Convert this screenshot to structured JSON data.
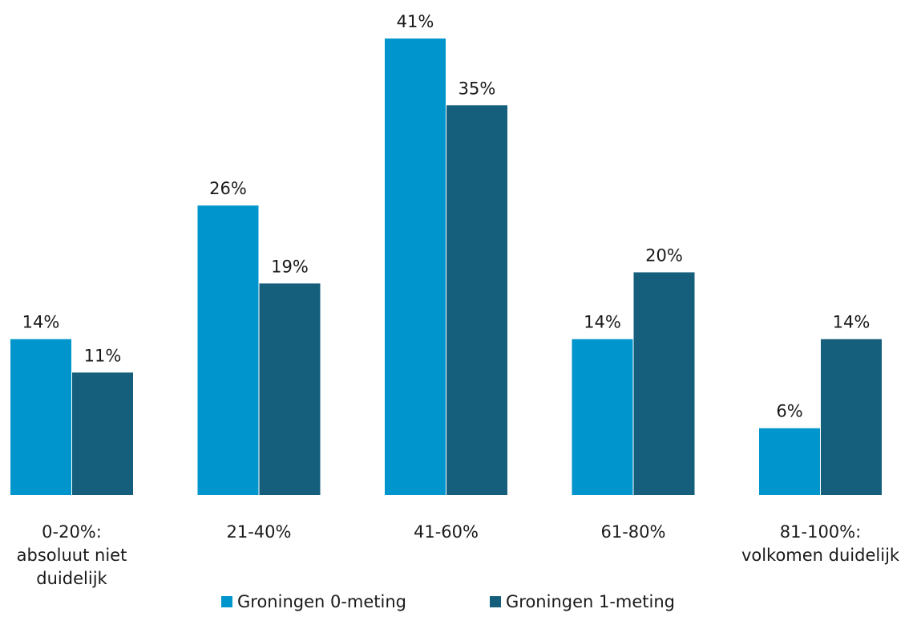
{
  "chart_data": {
    "type": "bar",
    "categories": [
      [
        "0-20%:",
        "absoluut niet",
        "duidelijk"
      ],
      [
        "21-40%"
      ],
      [
        "41-60%"
      ],
      [
        "61-80%"
      ],
      [
        "81-100%:",
        "volkomen duidelijk"
      ]
    ],
    "series": [
      {
        "name": "Groningen 0-meting",
        "values": [
          14,
          26,
          41,
          14,
          6
        ],
        "labels": [
          "14%",
          "26%",
          "41%",
          "14%",
          "6%"
        ],
        "color": "#0095cc"
      },
      {
        "name": "Groningen 1-meting",
        "values": [
          11,
          19,
          35,
          20,
          14
        ],
        "labels": [
          "11%",
          "19%",
          "35%",
          "20%",
          "14%"
        ],
        "color": "#155e7c"
      }
    ],
    "ylim": [
      0,
      41
    ],
    "grid": false,
    "legend": "bottom"
  }
}
